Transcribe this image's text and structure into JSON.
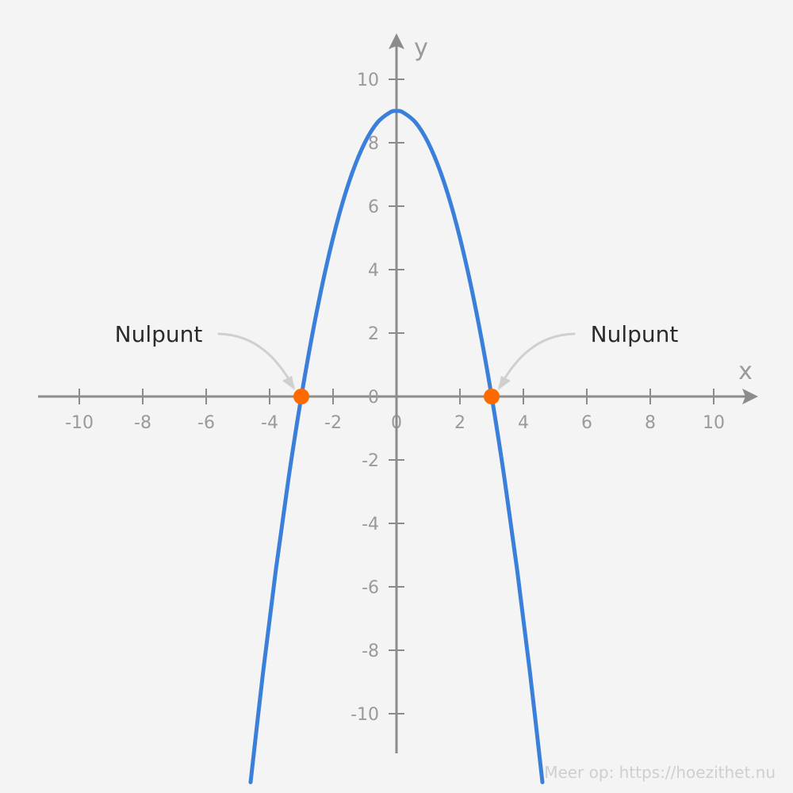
{
  "chart_data": {
    "type": "line",
    "xlabel": "x",
    "ylabel": "y",
    "xlim": [
      -11.25,
      11.25
    ],
    "ylim": [
      -11.25,
      11.25
    ],
    "x_ticks": [
      -10,
      -8,
      -6,
      -4,
      -2,
      0,
      2,
      4,
      6,
      8,
      10
    ],
    "y_ticks": [
      -10,
      -8,
      -6,
      -4,
      -2,
      0,
      2,
      4,
      6,
      8,
      10
    ],
    "x_tick_labels": [
      "-10",
      "-8",
      "-6",
      "-4",
      "-2",
      "0",
      "2",
      "4",
      "6",
      "8",
      "10"
    ],
    "y_tick_labels": [
      "-10",
      "-8",
      "-6",
      "-4",
      "-2",
      "0",
      "2",
      "4",
      "6",
      "8",
      "10"
    ],
    "grid": false,
    "series": [
      {
        "x": [
          -4.6,
          -4.2,
          -3.8,
          -3.4,
          -3.0,
          -2.6,
          -2.2,
          -1.8,
          -1.4,
          -1.0,
          -0.6,
          -0.2,
          0.0,
          0.2,
          0.6,
          1.0,
          1.4,
          1.8,
          2.2,
          2.6,
          3.0,
          3.4,
          3.8,
          4.2,
          4.6
        ],
        "y": [
          -12.16,
          -8.64,
          -5.44,
          -2.56,
          0.0,
          2.24,
          4.16,
          5.76,
          7.04,
          8.0,
          8.64,
          8.96,
          9.0,
          8.96,
          8.64,
          8.0,
          7.04,
          5.76,
          4.16,
          2.24,
          0.0,
          -2.56,
          -5.44,
          -8.64,
          -12.16
        ],
        "color": "#3a7fd9"
      }
    ],
    "highlighted_points": [
      {
        "x": -3,
        "y": 0,
        "color": "#ff6a00"
      },
      {
        "x": 3,
        "y": 0,
        "color": "#ff6a00"
      }
    ],
    "annotations": [
      {
        "text": "Nulpunt",
        "target_x": -3,
        "target_y": 0
      },
      {
        "text": "Nulpunt",
        "target_x": 3,
        "target_y": 0
      }
    ],
    "colors": {
      "axis": "#8c8c8c",
      "curve": "#3a7fd9",
      "points": "#ff6a00",
      "arrow": "#cfcfcf"
    }
  },
  "footer": {
    "credit": "Meer op: https://hoezithet.nu"
  }
}
